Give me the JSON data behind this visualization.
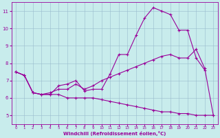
{
  "xlabel": "Windchill (Refroidissement éolien,°C)",
  "background_color": "#c8ecec",
  "line_color": "#990099",
  "grid_color": "#99bbcc",
  "xlim": [
    -0.5,
    23.5
  ],
  "ylim": [
    4.5,
    11.5
  ],
  "yticks": [
    5,
    6,
    7,
    8,
    9,
    10,
    11
  ],
  "xticks": [
    0,
    1,
    2,
    3,
    4,
    5,
    6,
    7,
    8,
    9,
    10,
    11,
    12,
    13,
    14,
    15,
    16,
    17,
    18,
    19,
    20,
    21,
    22,
    23
  ],
  "curve1_x": [
    0,
    1,
    2,
    3,
    4,
    5,
    6,
    7,
    8,
    9,
    10,
    11,
    12,
    13,
    14,
    15,
    16,
    17,
    18,
    19,
    20,
    21,
    22
  ],
  "curve1_y": [
    7.5,
    7.3,
    6.3,
    6.2,
    6.2,
    6.7,
    6.8,
    7.0,
    6.4,
    6.5,
    6.5,
    7.4,
    8.5,
    8.5,
    9.6,
    10.6,
    11.2,
    11.0,
    10.8,
    9.9,
    9.9,
    8.3,
    7.6
  ],
  "curve2_x": [
    0,
    1,
    2,
    3,
    4,
    5,
    6,
    7,
    8,
    9,
    10,
    11,
    12,
    13,
    14,
    15,
    16,
    17,
    18,
    19,
    20,
    21,
    22,
    23
  ],
  "curve2_y": [
    7.5,
    7.3,
    6.3,
    6.2,
    6.3,
    6.5,
    6.5,
    6.8,
    6.5,
    6.7,
    7.0,
    7.2,
    7.4,
    7.6,
    7.8,
    8.0,
    8.2,
    8.4,
    8.5,
    8.3,
    8.3,
    8.8,
    7.7,
    5.0
  ],
  "curve3_x": [
    0,
    1,
    2,
    3,
    4,
    5,
    6,
    7,
    8,
    9,
    10,
    11,
    12,
    13,
    14,
    15,
    16,
    17,
    18,
    19,
    20,
    21,
    22,
    23
  ],
  "curve3_y": [
    7.5,
    7.3,
    6.3,
    6.2,
    6.2,
    6.2,
    6.0,
    6.0,
    6.0,
    6.0,
    5.9,
    5.8,
    5.7,
    5.6,
    5.5,
    5.4,
    5.3,
    5.2,
    5.2,
    5.1,
    5.1,
    5.0,
    5.0,
    5.0
  ]
}
